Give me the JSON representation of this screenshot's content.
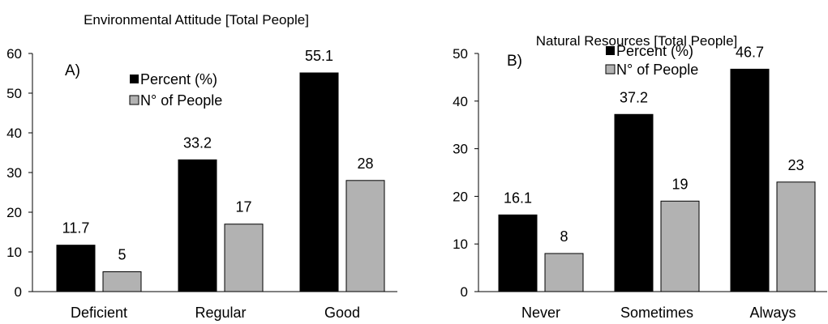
{
  "chart_data": [
    {
      "type": "bar",
      "title": "Environmental Attitude [Total People]",
      "panel_label": "A)",
      "categories": [
        "Deficient",
        "Regular",
        "Good"
      ],
      "series": [
        {
          "name": "Percent (%)",
          "color": "#000000",
          "values": [
            11.7,
            33.2,
            55.1
          ]
        },
        {
          "name": "N° of People",
          "color": "#b2b2b2",
          "values": [
            5,
            17,
            28
          ]
        }
      ],
      "data_labels": [
        [
          "11.7",
          "33.2",
          "55.1"
        ],
        [
          "5",
          "17",
          "28"
        ]
      ],
      "ylim": [
        0,
        60
      ],
      "yticks": [
        "0",
        "10",
        "20",
        "30",
        "40",
        "50",
        "60"
      ],
      "xlabel": "",
      "ylabel": "",
      "grid": false,
      "legend_position": "top-center"
    },
    {
      "type": "bar",
      "title": "Natural Resources [Total People]",
      "panel_label": "B)",
      "categories": [
        "Never",
        "Sometimes",
        "Always"
      ],
      "series": [
        {
          "name": "Percent (%)",
          "color": "#000000",
          "values": [
            16.1,
            37.2,
            46.7
          ]
        },
        {
          "name": "N° of People",
          "color": "#b2b2b2",
          "values": [
            8,
            19,
            23
          ]
        }
      ],
      "data_labels": [
        [
          "16.1",
          "37.2",
          "46.7"
        ],
        [
          "8",
          "19",
          "23"
        ]
      ],
      "ylim": [
        0,
        50
      ],
      "yticks": [
        "0",
        "10",
        "20",
        "30",
        "40",
        "50"
      ],
      "xlabel": "",
      "ylabel": "",
      "grid": false,
      "legend_position": "top-center"
    }
  ]
}
